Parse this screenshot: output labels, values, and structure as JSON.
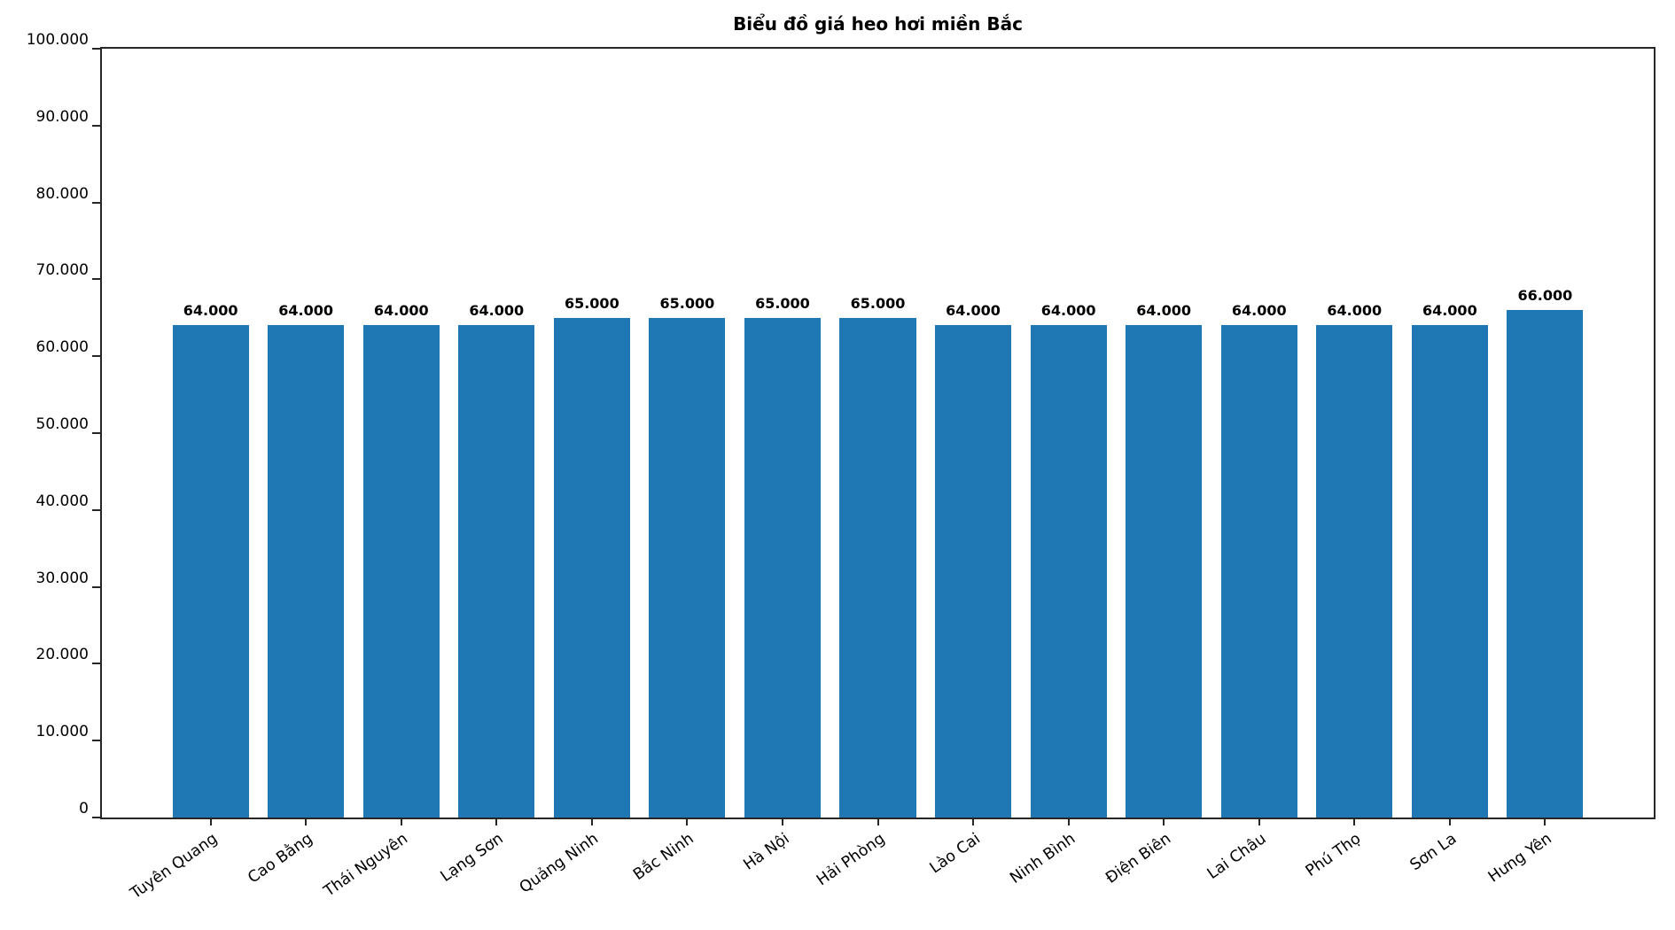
{
  "chart_data": {
    "type": "bar",
    "title": "Biểu đồ giá heo hơi miền Bắc",
    "categories": [
      "Tuyên Quang",
      "Cao Bằng",
      "Thái Nguyên",
      "Lạng Sơn",
      "Quảng Ninh",
      "Bắc Ninh",
      "Hà Nội",
      "Hải Phòng",
      "Lào Cai",
      "Ninh Bình",
      "Điện Biên",
      "Lai Châu",
      "Phú Thọ",
      "Sơn La",
      "Hưng Yên"
    ],
    "values": [
      64000,
      64000,
      64000,
      64000,
      65000,
      65000,
      65000,
      65000,
      64000,
      64000,
      64000,
      64000,
      64000,
      64000,
      66000
    ],
    "value_labels": [
      "64.000",
      "64.000",
      "64.000",
      "64.000",
      "65.000",
      "65.000",
      "65.000",
      "65.000",
      "64.000",
      "64.000",
      "64.000",
      "64.000",
      "64.000",
      "64.000",
      "66.000"
    ],
    "xlabel": "",
    "ylabel": "",
    "ylim": [
      0,
      100000
    ],
    "ytick_values": [
      0,
      10000,
      20000,
      30000,
      40000,
      50000,
      60000,
      70000,
      80000,
      90000,
      100000
    ],
    "ytick_labels": [
      "0",
      "10.000",
      "20.000",
      "30.000",
      "40.000",
      "50.000",
      "60.000",
      "70.000",
      "80.000",
      "90.000",
      "100.000"
    ],
    "bar_color": "#1f77b4",
    "grid": false,
    "legend": null
  }
}
